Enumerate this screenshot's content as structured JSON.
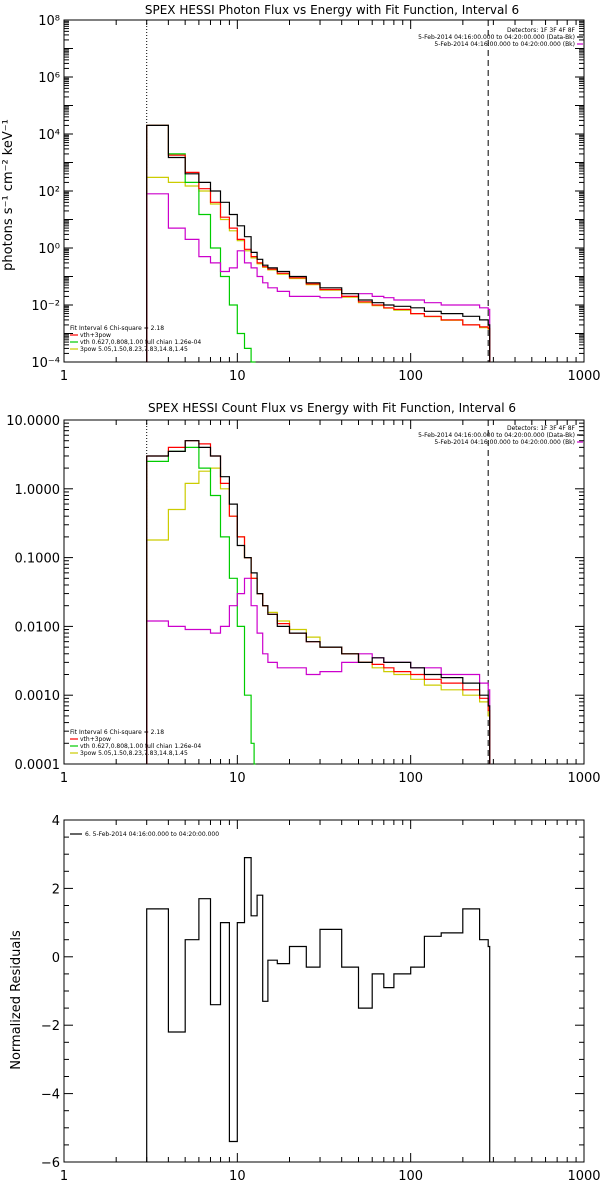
{
  "chart_data": [
    {
      "type": "line",
      "title": "SPEX HESSI Photon Flux vs Energy with Fit Function, Interval 6",
      "ylabel": "photons s⁻¹ cm⁻² keV⁻¹",
      "xlabel": "",
      "xscale": "log",
      "yscale": "log",
      "xlim": [
        1,
        1000
      ],
      "ylim": [
        0.0001,
        100000000
      ],
      "x_ticks": [
        "1",
        "10",
        "100",
        "1000"
      ],
      "y_ticks": [
        "10⁻⁴",
        "10⁻²",
        "10⁰",
        "10²",
        "10⁴",
        "10⁶",
        "10⁸"
      ],
      "y_tick_values": [
        0.0001,
        0.01,
        1,
        100,
        10000,
        1000000,
        100000000
      ],
      "vlines": [
        {
          "x": 3,
          "style": "dotted"
        },
        {
          "x": 280,
          "style": "dashed"
        }
      ],
      "legend_top_right": [
        "Detectors: 1F 3F 4F 8F",
        "5-Feb-2014 04:16:00.000 to 04:20:00.000 (Data-Bk)",
        "5-Feb-2014 04:16:00.000 to 04:20:00.000 (Bk)"
      ],
      "legend_bottom_left": [
        "Fit Interval 6   Chi-square = 2.18",
        "vth+3pow",
        "vth 0.627,0.808,1.00  full chian 1.26e-04",
        "3pow 5.05,1.50,8.23,7.83,14.8,1.45"
      ],
      "series": [
        {
          "name": "5-Feb-2014 04:16:00.000 to 04:20:00.000 (Data-Bk)",
          "color": "#000000",
          "x": [
            3,
            4,
            5,
            6,
            7,
            8,
            9,
            10,
            11,
            12,
            13,
            14,
            15,
            17,
            20,
            25,
            30,
            40,
            50,
            60,
            70,
            80,
            100,
            120,
            150,
            200,
            250,
            280
          ],
          "y": [
            20000,
            1500,
            400,
            200,
            100,
            40,
            15,
            6,
            2.5,
            0.7,
            0.4,
            0.25,
            0.2,
            0.15,
            0.1,
            0.06,
            0.04,
            0.025,
            0.015,
            0.012,
            0.01,
            0.009,
            0.008,
            0.006,
            0.005,
            0.004,
            0.003,
            0.002
          ]
        },
        {
          "name": "5-Feb-2014 04:16:00.000 to 04:20:00.000 (Bk)",
          "color": "#cc00cc",
          "x": [
            3,
            4,
            5,
            6,
            7,
            8,
            9,
            10,
            11,
            12,
            13,
            14,
            15,
            17,
            20,
            25,
            30,
            40,
            50,
            60,
            70,
            80,
            100,
            120,
            150,
            200,
            250,
            280
          ],
          "y": [
            80,
            5,
            2,
            0.5,
            0.3,
            0.15,
            0.2,
            0.8,
            0.3,
            0.2,
            0.1,
            0.06,
            0.04,
            0.03,
            0.02,
            0.02,
            0.018,
            0.02,
            0.025,
            0.02,
            0.018,
            0.015,
            0.015,
            0.012,
            0.01,
            0.01,
            0.008,
            0.007
          ]
        },
        {
          "name": "vth+3pow",
          "color": "#ff0000",
          "x": [
            3,
            4,
            5,
            6,
            7,
            8,
            9,
            10,
            11,
            12,
            13,
            14,
            15,
            17,
            20,
            25,
            30,
            40,
            50,
            60,
            70,
            80,
            100,
            120,
            150,
            200,
            250,
            280
          ],
          "y": [
            20000,
            1800,
            450,
            120,
            40,
            12,
            5,
            2,
            0.9,
            0.5,
            0.3,
            0.22,
            0.18,
            0.13,
            0.09,
            0.055,
            0.035,
            0.02,
            0.013,
            0.01,
            0.008,
            0.007,
            0.005,
            0.004,
            0.003,
            0.002,
            0.0017,
            0.0015
          ]
        },
        {
          "name": "vth",
          "color": "#00cc00",
          "x": [
            3,
            4,
            5,
            6,
            7,
            8,
            9,
            10,
            11,
            12,
            12.5
          ],
          "y": [
            20000,
            2000,
            200,
            15,
            1,
            0.1,
            0.01,
            0.001,
            0.0003,
            0.0001,
            5e-05
          ]
        },
        {
          "name": "3pow",
          "color": "#cccc00",
          "x": [
            3,
            4,
            5,
            6,
            7,
            8,
            9,
            10,
            11,
            12,
            13,
            14,
            15,
            17,
            20,
            25,
            30,
            40,
            50,
            60,
            70,
            80,
            100,
            120,
            150,
            200,
            250,
            280
          ],
          "y": [
            300,
            200,
            150,
            100,
            35,
            10,
            4,
            1.8,
            0.8,
            0.45,
            0.28,
            0.21,
            0.17,
            0.12,
            0.085,
            0.052,
            0.033,
            0.019,
            0.012,
            0.0095,
            0.0078,
            0.0066,
            0.0049,
            0.0039,
            0.0029,
            0.002,
            0.0016,
            0.0014
          ]
        }
      ]
    },
    {
      "type": "line",
      "title": "SPEX HESSI Count Flux vs Energy with Fit Function, Interval 6",
      "ylabel": "",
      "xlabel": "",
      "xscale": "log",
      "yscale": "log",
      "xlim": [
        1,
        1000
      ],
      "ylim": [
        0.0001,
        10
      ],
      "x_ticks": [
        "1",
        "10",
        "100",
        "1000"
      ],
      "y_ticks": [
        "0.0001",
        "0.0010",
        "0.0100",
        "0.1000",
        "1.0000",
        "10.0000"
      ],
      "y_tick_values": [
        0.0001,
        0.001,
        0.01,
        0.1,
        1,
        10
      ],
      "vlines": [
        {
          "x": 3,
          "style": "dotted"
        },
        {
          "x": 280,
          "style": "dashed"
        }
      ],
      "legend_top_right": [
        "Detectors: 1F 3F 4F 8F",
        "5-Feb-2014 04:16:00.000 to 04:20:00.000 (Data-Bk)",
        "5-Feb-2014 04:16:00.000 to 04:20:00.000 (Bk)"
      ],
      "legend_bottom_left": [
        "Fit Interval 6   Chi-square = 2.18",
        "vth+3pow",
        "vth 0.627,0.808,1.00  full chian 1.26e-04",
        "3pow 5.05,1.50,8.23,7.83,14.8,1.45"
      ],
      "series": [
        {
          "name": "5-Feb-2014 04:16:00.000 to 04:20:00.000 (Data-Bk)",
          "color": "#000000",
          "x": [
            3,
            4,
            5,
            6,
            7,
            8,
            9,
            10,
            11,
            12,
            13,
            14,
            15,
            17,
            20,
            25,
            30,
            40,
            50,
            60,
            70,
            80,
            100,
            120,
            150,
            200,
            250,
            280
          ],
          "y": [
            3,
            3.5,
            5,
            4,
            3,
            1.5,
            0.6,
            0.15,
            0.1,
            0.06,
            0.03,
            0.02,
            0.015,
            0.01,
            0.008,
            0.006,
            0.005,
            0.004,
            0.003,
            0.0035,
            0.003,
            0.003,
            0.0025,
            0.002,
            0.0018,
            0.0015,
            0.001,
            0.0007
          ]
        },
        {
          "name": "5-Feb-2014 04:16:00.000 to 04:20:00.000 (Bk)",
          "color": "#cc00cc",
          "x": [
            3,
            4,
            5,
            6,
            7,
            8,
            9,
            10,
            11,
            12,
            13,
            14,
            15,
            17,
            20,
            25,
            30,
            40,
            50,
            60,
            70,
            80,
            100,
            120,
            150,
            200,
            250,
            280
          ],
          "y": [
            0.012,
            0.01,
            0.009,
            0.009,
            0.008,
            0.01,
            0.02,
            0.03,
            0.05,
            0.02,
            0.008,
            0.004,
            0.003,
            0.0025,
            0.0025,
            0.002,
            0.0022,
            0.003,
            0.004,
            0.0035,
            0.003,
            0.003,
            0.0025,
            0.0025,
            0.002,
            0.002,
            0.0015,
            0.0012
          ]
        },
        {
          "name": "vth+3pow",
          "color": "#ff0000",
          "x": [
            3,
            4,
            5,
            6,
            7,
            8,
            9,
            10,
            11,
            12,
            13,
            14,
            15,
            17,
            20,
            25,
            30,
            40,
            50,
            60,
            70,
            80,
            100,
            120,
            150,
            200,
            250,
            280
          ],
          "y": [
            3,
            4,
            5,
            4.5,
            3,
            1.2,
            0.4,
            0.2,
            0.1,
            0.05,
            0.03,
            0.02,
            0.015,
            0.011,
            0.008,
            0.006,
            0.005,
            0.004,
            0.003,
            0.0028,
            0.0025,
            0.0022,
            0.002,
            0.0017,
            0.0015,
            0.0012,
            0.0009,
            0.0006
          ]
        },
        {
          "name": "vth",
          "color": "#00cc00",
          "x": [
            3,
            4,
            5,
            6,
            7,
            8,
            9,
            10,
            11,
            12,
            12.5
          ],
          "y": [
            2.5,
            3.5,
            4,
            2,
            0.8,
            0.2,
            0.05,
            0.01,
            0.001,
            0.0002,
            5e-05
          ]
        },
        {
          "name": "3pow",
          "color": "#cccc00",
          "x": [
            3,
            4,
            5,
            6,
            7,
            8,
            9,
            10,
            11,
            12,
            13,
            14,
            15,
            17,
            20,
            25,
            30,
            40,
            50,
            60,
            70,
            80,
            100,
            120,
            150,
            200,
            250,
            280
          ],
          "y": [
            0.18,
            0.5,
            1.2,
            1.8,
            2,
            1,
            0.4,
            0.2,
            0.1,
            0.05,
            0.03,
            0.02,
            0.016,
            0.012,
            0.009,
            0.007,
            0.005,
            0.004,
            0.003,
            0.0025,
            0.0022,
            0.002,
            0.0017,
            0.0014,
            0.0012,
            0.001,
            0.0008,
            0.0005
          ]
        }
      ]
    },
    {
      "type": "line",
      "title": "",
      "ylabel": "Normalized Residuals",
      "xlabel": "",
      "xscale": "log",
      "yscale": "linear",
      "xlim": [
        1,
        1000
      ],
      "ylim": [
        -6,
        4
      ],
      "x_ticks": [
        "1",
        "10",
        "100",
        "1000"
      ],
      "y_ticks": [
        "−6",
        "−4",
        "−2",
        "0",
        "2",
        "4"
      ],
      "y_tick_values": [
        -6,
        -4,
        -2,
        0,
        2,
        4
      ],
      "legend_top_left": [
        "6.  5-Feb-2014 04:16:00.000 to 04:20:00.000"
      ],
      "series": [
        {
          "name": "6.  5-Feb-2014 04:16:00.000 to 04:20:00.000",
          "color": "#000000",
          "x": [
            3,
            4,
            5,
            6,
            7,
            8,
            9,
            10,
            11,
            12,
            13,
            14,
            15,
            17,
            20,
            25,
            30,
            40,
            50,
            60,
            70,
            80,
            100,
            120,
            150,
            200,
            250,
            280
          ],
          "y": [
            1.4,
            -2.2,
            0.5,
            1.7,
            -1.4,
            1,
            -5.4,
            1,
            2.9,
            1.2,
            1.8,
            -1.3,
            -0.1,
            -0.2,
            0.3,
            -0.3,
            0.8,
            -0.3,
            -1.5,
            -0.5,
            -0.9,
            -0.5,
            -0.3,
            0.6,
            0.7,
            1.4,
            0.5,
            0.3
          ]
        }
      ]
    }
  ]
}
